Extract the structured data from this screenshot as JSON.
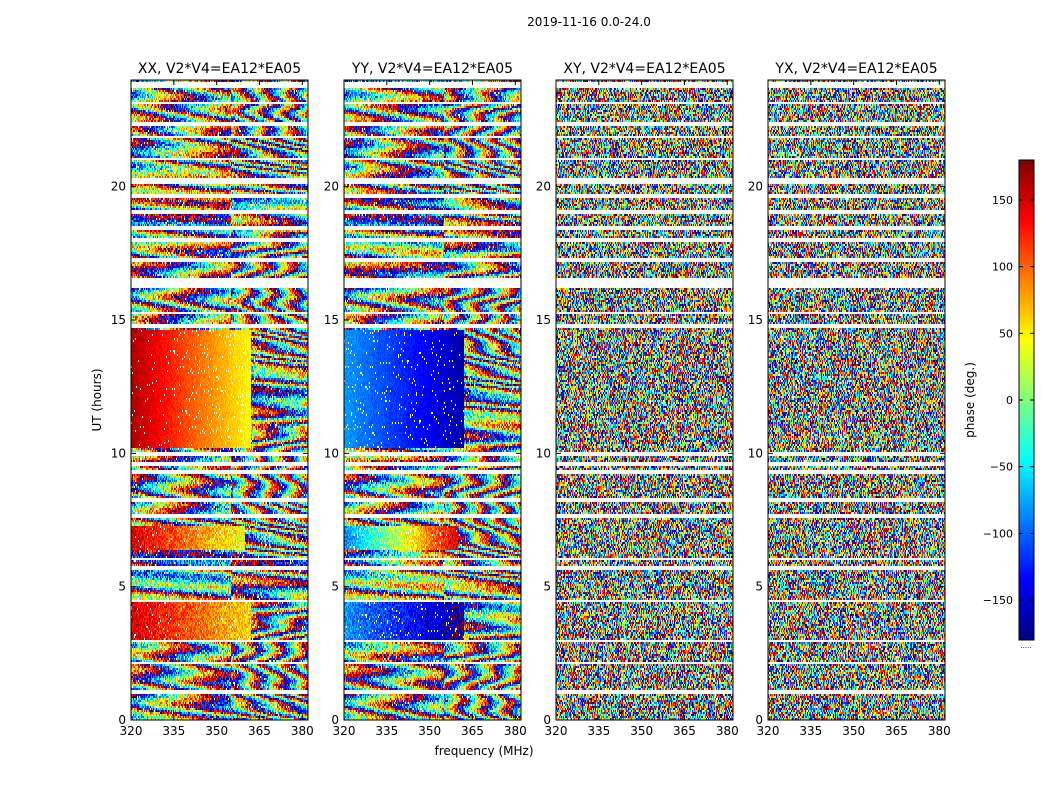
{
  "figure": {
    "suptitle": "2019-11-16 0.0-24.0",
    "xlabel": "frequency (MHz)",
    "ylabel": "UT (hours)"
  },
  "colorbar": {
    "label": "phase (deg.)",
    "range": [
      -180,
      180
    ],
    "ticks": [
      150,
      100,
      50,
      0,
      -50,
      -100,
      -150
    ],
    "tick_labels": [
      "150",
      "100",
      "50",
      "0",
      "−50",
      "−100",
      "−150"
    ],
    "colormap": [
      "#00007f",
      "#0000ff",
      "#007fff",
      "#00ffff",
      "#7fff7f",
      "#ffff00",
      "#ff7f00",
      "#ff0000",
      "#7f0000"
    ],
    "footnote": "....."
  },
  "chart_data": [
    {
      "type": "heatmap",
      "title": "XX, V2*V4=EA12*EA05",
      "xlim": [
        320,
        382
      ],
      "ylim": [
        0,
        24
      ],
      "xticks": [
        320,
        335,
        350,
        365,
        380
      ],
      "yticks": [
        0,
        5,
        10,
        15,
        20
      ],
      "value": "phase (deg.)",
      "regions": [
        {
          "x": [
            320,
            362
          ],
          "y": [
            10.2,
            14.6
          ],
          "phase_start": 165,
          "phase_end": 45,
          "description": "smooth"
        },
        {
          "x": [
            362,
            382
          ],
          "y": [
            10.2,
            14.6
          ],
          "phase": "wrapping fringes"
        },
        {
          "x": [
            320,
            362
          ],
          "y": [
            3.0,
            4.4
          ],
          "phase_start": 150,
          "phase_end": 60
        },
        {
          "x": [
            320,
            360
          ],
          "y": [
            6.4,
            7.3
          ],
          "phase_start": 150,
          "phase_end": 40
        }
      ]
    },
    {
      "type": "heatmap",
      "title": "YY, V2*V4=EA12*EA05",
      "xlim": [
        320,
        382
      ],
      "ylim": [
        0,
        24
      ],
      "xticks": [
        320,
        335,
        350,
        365,
        380
      ],
      "yticks": [
        0,
        5,
        10,
        15,
        20
      ],
      "value": "phase (deg.)",
      "regions": [
        {
          "x": [
            320,
            362
          ],
          "y": [
            10.2,
            14.6
          ],
          "phase_start": -80,
          "phase_end": -165,
          "description": "smooth"
        },
        {
          "x": [
            362,
            382
          ],
          "y": [
            10.2,
            14.6
          ],
          "phase": "wrapping fringes"
        },
        {
          "x": [
            320,
            362
          ],
          "y": [
            3.0,
            4.4
          ],
          "phase_start": -80,
          "phase_end": -170
        },
        {
          "x": [
            320,
            360
          ],
          "y": [
            6.4,
            7.3
          ],
          "phase_start": -90,
          "phase_end": 150
        }
      ]
    },
    {
      "type": "heatmap",
      "title": "XY, V2*V4=EA12*EA05",
      "xlim": [
        320,
        382
      ],
      "ylim": [
        0,
        24
      ],
      "xticks": [
        320,
        335,
        350,
        365,
        380
      ],
      "yticks": [
        0,
        5,
        10,
        15,
        20
      ],
      "value": "phase (deg.)",
      "regions": [
        {
          "x": [
            320,
            382
          ],
          "y": [
            0,
            24
          ],
          "phase": "noise"
        }
      ]
    },
    {
      "type": "heatmap",
      "title": "YX, V2*V4=EA12*EA05",
      "xlim": [
        320,
        382
      ],
      "ylim": [
        0,
        24
      ],
      "xticks": [
        320,
        335,
        350,
        365,
        380
      ],
      "yticks": [
        0,
        5,
        10,
        15,
        20
      ],
      "value": "phase (deg.)",
      "regions": [
        {
          "x": [
            320,
            382
          ],
          "y": [
            0,
            24
          ],
          "phase": "noise"
        }
      ]
    }
  ]
}
